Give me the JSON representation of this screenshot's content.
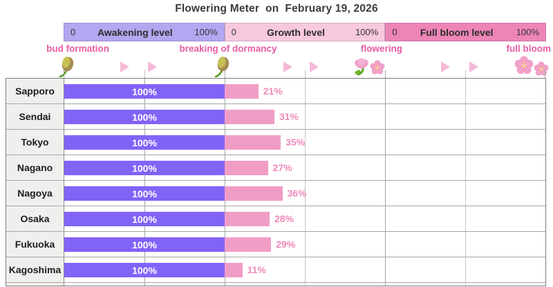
{
  "title": "Flowering Meter  on  February 19, 2026",
  "meter_header": {
    "segments": [
      {
        "name": "Awakening level",
        "min_label": "0",
        "max_label": "100%",
        "color": "#b4a6f0"
      },
      {
        "name": "Growth level",
        "min_label": "0",
        "max_label": "100%",
        "color": "#f8c9dd"
      },
      {
        "name": "Full bloom level",
        "min_label": "0",
        "max_label": "100%",
        "color": "#ee85b7"
      }
    ]
  },
  "stages": [
    {
      "label": "bud formation",
      "icon": "bud-icon"
    },
    {
      "label": "breaking of dormancy",
      "icon": "bud-icon"
    },
    {
      "label": "flowering",
      "icon": "tulip-and-blossom-icon"
    },
    {
      "label": "full bloom",
      "icon": "double-blossom-icon"
    }
  ],
  "chart_data": {
    "type": "bar",
    "orientation": "horizontal",
    "title": "Flowering Meter  on  February 19, 2026",
    "categories": [
      "Sapporo",
      "Sendai",
      "Tokyo",
      "Nagano",
      "Nagoya",
      "Osaka",
      "Fukuoka",
      "Kagoshima"
    ],
    "series": [
      {
        "name": "Awakening level",
        "unit": "%",
        "color": "#8263f8",
        "label_color": "#ffffff",
        "values": [
          100,
          100,
          100,
          100,
          100,
          100,
          100,
          100
        ]
      },
      {
        "name": "Growth level",
        "unit": "%",
        "color": "#f09dc6",
        "label_color": "#ee8abc",
        "values": [
          21,
          31,
          35,
          27,
          36,
          28,
          29,
          11
        ]
      },
      {
        "name": "Full bloom level",
        "unit": "%",
        "color": "#ee85b7",
        "label_color": "#ee8abc",
        "values": [
          0,
          0,
          0,
          0,
          0,
          0,
          0,
          0
        ]
      }
    ],
    "xlim": [
      0,
      100
    ],
    "axis_per_segment": {
      "min": "0",
      "max": "100%"
    },
    "grid": true,
    "legend_position": "top"
  },
  "colors": {
    "awakening_bar": "#8263f8",
    "growth_bar": "#f09dc6",
    "growth_value_label": "#ee8abc",
    "stage_label_pink": "#e65ba6",
    "arrow_pink": "#f6b9d8",
    "row_label_bg": "#f0efee",
    "grid_line": "#a6a6a6",
    "table_border": "#7b7b7b",
    "title_text": "#3b3b3b"
  }
}
